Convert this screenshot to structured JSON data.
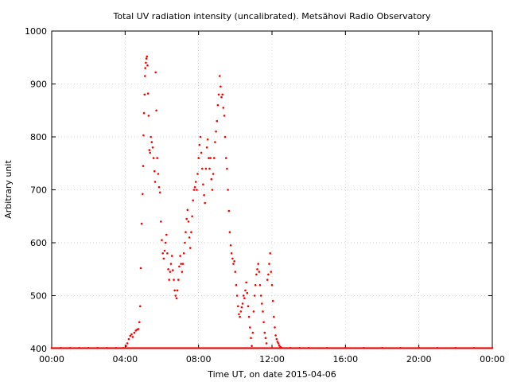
{
  "chart_data": {
    "type": "scatter",
    "title": "Total UV radiation intensity (uncalibrated). Metsähovi Radio Observatory",
    "xlabel": "Time UT, on date 2015-04-06",
    "ylabel": "Arbitrary unit",
    "xlim": [
      0,
      24
    ],
    "ylim": [
      400,
      1000
    ],
    "x_ticks": [
      {
        "value": 0,
        "label": "00:00"
      },
      {
        "value": 4,
        "label": "04:00"
      },
      {
        "value": 8,
        "label": "08:00"
      },
      {
        "value": 12,
        "label": "12:00"
      },
      {
        "value": 16,
        "label": "16:00"
      },
      {
        "value": 20,
        "label": "20:00"
      },
      {
        "value": 24,
        "label": "00:00"
      }
    ],
    "y_ticks": [
      {
        "value": 400,
        "label": "400"
      },
      {
        "value": 500,
        "label": "500"
      },
      {
        "value": 600,
        "label": "600"
      },
      {
        "value": 700,
        "label": "700"
      },
      {
        "value": 800,
        "label": "800"
      },
      {
        "value": 900,
        "label": "900"
      },
      {
        "value": 1000,
        "label": "1000"
      }
    ],
    "grid": true,
    "marker_color": "#ff0000",
    "series": [
      {
        "name": "",
        "points": [
          [
            0.0,
            401
          ],
          [
            0.5,
            401
          ],
          [
            1.0,
            401
          ],
          [
            1.5,
            401
          ],
          [
            2.0,
            401
          ],
          [
            2.5,
            401
          ],
          [
            3.0,
            401
          ],
          [
            3.5,
            401
          ],
          [
            3.9,
            401
          ],
          [
            4.05,
            405
          ],
          [
            4.12,
            410
          ],
          [
            4.2,
            418
          ],
          [
            4.28,
            424
          ],
          [
            4.35,
            427
          ],
          [
            4.42,
            422
          ],
          [
            4.5,
            430
          ],
          [
            4.58,
            434
          ],
          [
            4.66,
            436
          ],
          [
            4.72,
            437
          ],
          [
            4.78,
            450
          ],
          [
            4.82,
            480
          ],
          [
            4.85,
            552
          ],
          [
            4.9,
            636
          ],
          [
            4.95,
            692
          ],
          [
            4.98,
            745
          ],
          [
            5.0,
            803
          ],
          [
            5.03,
            845
          ],
          [
            5.06,
            880
          ],
          [
            5.08,
            915
          ],
          [
            5.1,
            930
          ],
          [
            5.13,
            940
          ],
          [
            5.16,
            948
          ],
          [
            5.19,
            952
          ],
          [
            5.22,
            935
          ],
          [
            5.25,
            882
          ],
          [
            5.28,
            840
          ],
          [
            5.32,
            775
          ],
          [
            5.36,
            770
          ],
          [
            5.4,
            800
          ],
          [
            5.45,
            790
          ],
          [
            5.5,
            780
          ],
          [
            5.55,
            760
          ],
          [
            5.6,
            735
          ],
          [
            5.63,
            715
          ],
          [
            5.66,
            922
          ],
          [
            5.7,
            850
          ],
          [
            5.75,
            760
          ],
          [
            5.8,
            730
          ],
          [
            5.85,
            705
          ],
          [
            5.9,
            695
          ],
          [
            5.95,
            640
          ],
          [
            6.0,
            605
          ],
          [
            6.05,
            580
          ],
          [
            6.1,
            570
          ],
          [
            6.15,
            585
          ],
          [
            6.2,
            600
          ],
          [
            6.25,
            615
          ],
          [
            6.3,
            580
          ],
          [
            6.35,
            550
          ],
          [
            6.4,
            530
          ],
          [
            6.45,
            545
          ],
          [
            6.5,
            560
          ],
          [
            6.55,
            575
          ],
          [
            6.6,
            548
          ],
          [
            6.65,
            530
          ],
          [
            6.7,
            510
          ],
          [
            6.75,
            500
          ],
          [
            6.8,
            495
          ],
          [
            6.85,
            510
          ],
          [
            6.9,
            530
          ],
          [
            6.95,
            555
          ],
          [
            7.0,
            575
          ],
          [
            7.05,
            560
          ],
          [
            7.1,
            545
          ],
          [
            7.15,
            560
          ],
          [
            7.2,
            580
          ],
          [
            7.25,
            600
          ],
          [
            7.3,
            620
          ],
          [
            7.35,
            645
          ],
          [
            7.4,
            662
          ],
          [
            7.45,
            640
          ],
          [
            7.5,
            610
          ],
          [
            7.55,
            590
          ],
          [
            7.6,
            620
          ],
          [
            7.65,
            650
          ],
          [
            7.7,
            680
          ],
          [
            7.75,
            700
          ],
          [
            7.8,
            705
          ],
          [
            7.85,
            715
          ],
          [
            7.9,
            700
          ],
          [
            7.95,
            730
          ],
          [
            8.0,
            760
          ],
          [
            8.05,
            785
          ],
          [
            8.1,
            800
          ],
          [
            8.15,
            770
          ],
          [
            8.2,
            740
          ],
          [
            8.25,
            710
          ],
          [
            8.3,
            690
          ],
          [
            8.35,
            675
          ],
          [
            8.4,
            740
          ],
          [
            8.45,
            780
          ],
          [
            8.5,
            795
          ],
          [
            8.55,
            760
          ],
          [
            8.6,
            740
          ],
          [
            8.65,
            760
          ],
          [
            8.7,
            720
          ],
          [
            8.75,
            700
          ],
          [
            8.8,
            730
          ],
          [
            8.85,
            760
          ],
          [
            8.9,
            790
          ],
          [
            8.95,
            810
          ],
          [
            9.0,
            830
          ],
          [
            9.05,
            860
          ],
          [
            9.1,
            880
          ],
          [
            9.15,
            915
          ],
          [
            9.2,
            895
          ],
          [
            9.25,
            875
          ],
          [
            9.3,
            880
          ],
          [
            9.35,
            855
          ],
          [
            9.4,
            840
          ],
          [
            9.45,
            800
          ],
          [
            9.5,
            760
          ],
          [
            9.55,
            740
          ],
          [
            9.6,
            700
          ],
          [
            9.65,
            660
          ],
          [
            9.7,
            620
          ],
          [
            9.75,
            595
          ],
          [
            9.8,
            580
          ],
          [
            9.85,
            570
          ],
          [
            9.9,
            560
          ],
          [
            9.95,
            565
          ],
          [
            10.0,
            545
          ],
          [
            10.05,
            520
          ],
          [
            10.1,
            500
          ],
          [
            10.15,
            480
          ],
          [
            10.2,
            465
          ],
          [
            10.25,
            460
          ],
          [
            10.3,
            470
          ],
          [
            10.35,
            478
          ],
          [
            10.4,
            485
          ],
          [
            10.45,
            500
          ],
          [
            10.5,
            495
          ],
          [
            10.55,
            510
          ],
          [
            10.6,
            525
          ],
          [
            10.65,
            505
          ],
          [
            10.7,
            480
          ],
          [
            10.75,
            460
          ],
          [
            10.8,
            440
          ],
          [
            10.85,
            420
          ],
          [
            10.9,
            405
          ],
          [
            10.95,
            430
          ],
          [
            11.0,
            470
          ],
          [
            11.05,
            500
          ],
          [
            11.1,
            520
          ],
          [
            11.15,
            540
          ],
          [
            11.2,
            550
          ],
          [
            11.25,
            560
          ],
          [
            11.3,
            545
          ],
          [
            11.35,
            520
          ],
          [
            11.4,
            500
          ],
          [
            11.45,
            485
          ],
          [
            11.5,
            470
          ],
          [
            11.55,
            450
          ],
          [
            11.6,
            430
          ],
          [
            11.65,
            420
          ],
          [
            11.7,
            410
          ],
          [
            11.75,
            530
          ],
          [
            11.8,
            540
          ],
          [
            11.85,
            560
          ],
          [
            11.9,
            580
          ],
          [
            11.95,
            545
          ],
          [
            12.0,
            520
          ],
          [
            12.05,
            490
          ],
          [
            12.1,
            460
          ],
          [
            12.15,
            440
          ],
          [
            12.2,
            425
          ],
          [
            12.25,
            418
          ],
          [
            12.3,
            413
          ],
          [
            12.35,
            410
          ],
          [
            12.4,
            406
          ],
          [
            12.45,
            403
          ],
          [
            12.5,
            402
          ],
          [
            13.0,
            401
          ],
          [
            13.5,
            401
          ],
          [
            14.0,
            401
          ],
          [
            15.0,
            401
          ],
          [
            16.0,
            401
          ],
          [
            17.0,
            401
          ],
          [
            18.0,
            401
          ],
          [
            19.0,
            401
          ],
          [
            20.0,
            401
          ],
          [
            21.0,
            401
          ],
          [
            22.0,
            401
          ],
          [
            23.0,
            401
          ],
          [
            24.0,
            401
          ]
        ]
      }
    ]
  }
}
